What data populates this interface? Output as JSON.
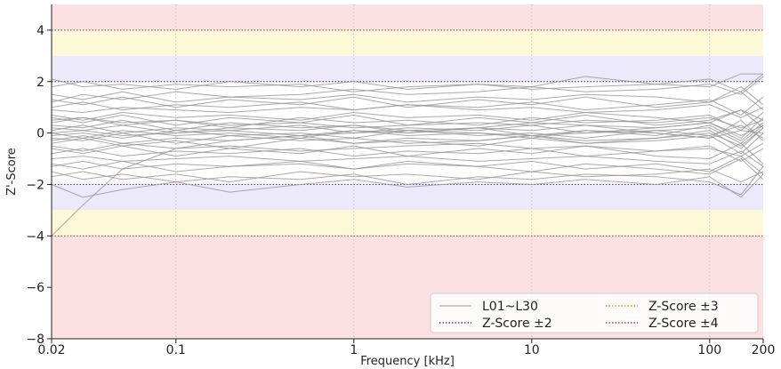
{
  "chart_data": {
    "type": "line",
    "xlabel": "Frequency [kHz]",
    "ylabel": "Z'-Score",
    "xscale": "log",
    "xlim": [
      0.02,
      200
    ],
    "ylim": [
      -8,
      5
    ],
    "x_ticks": [
      0.02,
      0.1,
      1,
      10,
      100,
      200
    ],
    "x_tick_labels": [
      "0.02",
      "0.1",
      "1",
      "10",
      "100",
      "200"
    ],
    "y_ticks": [
      -8,
      -6,
      -4,
      -2,
      0,
      2,
      4
    ],
    "y_tick_labels": [
      "−8",
      "−6",
      "−4",
      "−2",
      "0",
      "2",
      "4"
    ],
    "grid": true,
    "legend_position": "bottom-right",
    "bands": [
      {
        "from": 4,
        "to": 5,
        "color": "#fbe1e1"
      },
      {
        "from": 3,
        "to": 4,
        "color": "#fdf8d8"
      },
      {
        "from": 2,
        "to": 3,
        "color": "#ece9fb"
      },
      {
        "from": -3,
        "to": -2,
        "color": "#ece9fb"
      },
      {
        "from": -4,
        "to": -3,
        "color": "#fdf8d8"
      },
      {
        "from": -8,
        "to": -4,
        "color": "#fbe1e1"
      }
    ],
    "reference_lines": [
      {
        "y": 2,
        "color": "#7a2a8a",
        "style": "dotted"
      },
      {
        "y": -2,
        "color": "#7a2a8a",
        "style": "dotted"
      },
      {
        "y": 4,
        "color": "#b04040",
        "style": "dotted"
      },
      {
        "y": -4,
        "color": "#b04040",
        "style": "dotted"
      }
    ],
    "legend": [
      {
        "label": "L01~L30",
        "style": "solid",
        "color": "#aaaaaa"
      },
      {
        "label": "Z-Score ±3",
        "style": "dotted",
        "color": "#e8a020"
      },
      {
        "label": "Z-Score ±2",
        "style": "dotted",
        "color": "#7a2a8a"
      },
      {
        "label": "Z-Score ±4",
        "style": "dotted",
        "color": "#c04030"
      }
    ],
    "x": [
      0.02,
      0.03,
      0.05,
      0.1,
      0.2,
      0.5,
      1,
      2,
      5,
      10,
      20,
      50,
      100,
      150,
      200
    ],
    "series": [
      {
        "values": [
          -4.0,
          -2.8,
          -1.4,
          -0.6,
          -0.3,
          -0.1,
          0.1,
          0.0,
          0.2,
          -0.1,
          0.1,
          0.0,
          -0.2,
          0.1,
          0.0
        ]
      },
      {
        "values": [
          0.5,
          0.6,
          0.4,
          0.5,
          0.3,
          0.4,
          0.2,
          0.3,
          0.4,
          0.3,
          0.5,
          0.4,
          0.6,
          0.2,
          0.5
        ]
      },
      {
        "values": [
          1.2,
          1.5,
          1.3,
          1.6,
          1.4,
          1.5,
          1.7,
          1.5,
          1.6,
          1.8,
          1.6,
          1.7,
          1.9,
          1.5,
          2.2
        ]
      },
      {
        "values": [
          -0.5,
          -0.7,
          -0.4,
          -0.6,
          -0.5,
          -0.7,
          -0.6,
          -0.5,
          -0.4,
          -0.6,
          -0.5,
          -0.7,
          -0.6,
          -0.9,
          -0.4
        ]
      },
      {
        "values": [
          1.8,
          2.0,
          1.7,
          1.9,
          1.8,
          1.9,
          1.6,
          1.8,
          1.9,
          1.7,
          1.8,
          1.9,
          2.1,
          1.6,
          2.3
        ]
      },
      {
        "values": [
          -1.5,
          -1.8,
          -1.6,
          -1.9,
          -1.7,
          -1.8,
          -1.6,
          -2.0,
          -1.7,
          -1.8,
          -1.6,
          -1.7,
          -1.9,
          -2.4,
          -1.3
        ]
      },
      {
        "values": [
          0.0,
          0.1,
          -0.1,
          0.0,
          0.1,
          -0.1,
          0.0,
          0.1,
          0.0,
          -0.1,
          0.0,
          0.1,
          -0.1,
          0.3,
          -0.2
        ]
      },
      {
        "values": [
          0.9,
          0.8,
          1.0,
          0.9,
          0.8,
          1.0,
          0.9,
          1.1,
          0.9,
          1.0,
          0.8,
          0.9,
          1.1,
          0.6,
          1.0
        ]
      },
      {
        "values": [
          -1.0,
          -0.9,
          -1.1,
          -1.0,
          -0.9,
          -1.1,
          -1.0,
          -0.9,
          -1.1,
          -1.0,
          -0.9,
          -1.1,
          -1.2,
          -0.7,
          -1.3
        ]
      },
      {
        "values": [
          -2.0,
          -2.5,
          -2.2,
          -1.9,
          -2.3,
          -2.0,
          -1.8,
          -2.1,
          -1.9,
          -2.0,
          -1.8,
          -2.0,
          -1.7,
          -2.5,
          -1.6
        ]
      },
      {
        "values": [
          0.3,
          0.2,
          0.5,
          0.1,
          0.4,
          0.2,
          0.3,
          0.1,
          0.2,
          0.4,
          0.3,
          0.2,
          0.4,
          -0.2,
          0.6
        ]
      },
      {
        "values": [
          -0.2,
          -0.3,
          0.0,
          -0.4,
          -0.1,
          -0.3,
          -0.2,
          -0.4,
          -0.3,
          -0.1,
          -0.3,
          -0.2,
          0.0,
          -0.5,
          0.2
        ]
      },
      {
        "values": [
          1.5,
          1.3,
          1.6,
          1.2,
          1.4,
          1.3,
          1.5,
          1.2,
          1.4,
          1.3,
          1.5,
          1.4,
          1.2,
          1.8,
          1.1
        ]
      },
      {
        "values": [
          -1.2,
          -1.4,
          -1.1,
          -1.5,
          -1.3,
          -1.2,
          -1.4,
          -1.1,
          -1.3,
          -1.5,
          -1.2,
          -1.4,
          -1.6,
          -1.0,
          -1.8
        ]
      },
      {
        "values": [
          0.7,
          0.5,
          0.8,
          0.6,
          0.7,
          0.5,
          0.8,
          0.6,
          0.7,
          0.5,
          0.8,
          0.6,
          0.4,
          0.9,
          0.5
        ]
      },
      {
        "values": [
          -0.8,
          -0.6,
          -0.9,
          -0.7,
          -0.8,
          -0.6,
          -0.9,
          -0.7,
          -0.8,
          -0.6,
          -0.9,
          -0.7,
          -0.5,
          -1.1,
          -0.6
        ]
      },
      {
        "values": [
          0.1,
          0.3,
          0.0,
          0.2,
          0.1,
          0.3,
          0.0,
          0.2,
          0.1,
          0.3,
          0.0,
          0.2,
          0.4,
          -0.1,
          0.3
        ]
      },
      {
        "values": [
          2.1,
          1.8,
          1.9,
          1.7,
          2.0,
          1.8,
          2.0,
          1.7,
          1.9,
          1.8,
          2.2,
          1.9,
          1.8,
          2.3,
          2.3
        ]
      },
      {
        "values": [
          -1.7,
          -1.5,
          -1.8,
          -1.6,
          -1.9,
          -1.5,
          -1.7,
          -1.6,
          -1.8,
          -1.5,
          -1.7,
          -1.6,
          -1.4,
          -1.9,
          -1.5
        ]
      },
      {
        "values": [
          0.4,
          0.6,
          0.3,
          0.5,
          0.2,
          0.6,
          0.4,
          0.5,
          0.3,
          0.6,
          0.4,
          0.5,
          0.7,
          0.1,
          0.8
        ]
      },
      {
        "values": [
          -0.4,
          -0.2,
          -0.5,
          -0.3,
          -0.6,
          -0.2,
          -0.4,
          -0.3,
          -0.5,
          -0.2,
          -0.4,
          -0.3,
          -0.1,
          -0.8,
          0.0
        ]
      },
      {
        "values": [
          1.0,
          1.2,
          0.9,
          1.1,
          1.0,
          1.2,
          0.9,
          1.1,
          1.0,
          1.2,
          0.9,
          1.1,
          1.3,
          0.7,
          1.4
        ]
      },
      {
        "values": [
          -0.1,
          0.0,
          -0.2,
          0.1,
          -0.1,
          0.0,
          -0.2,
          0.1,
          -0.1,
          0.0,
          -0.2,
          0.1,
          0.2,
          -0.4,
          0.3
        ]
      },
      {
        "values": [
          0.6,
          0.4,
          0.7,
          0.3,
          0.6,
          0.4,
          0.7,
          0.3,
          0.6,
          0.4,
          0.7,
          0.3,
          0.5,
          0.9,
          0.2
        ]
      },
      {
        "values": [
          -0.6,
          -0.8,
          -0.5,
          -0.9,
          -0.6,
          -0.8,
          -0.5,
          -0.9,
          -0.6,
          -0.8,
          -0.5,
          -0.9,
          -1.0,
          -0.4,
          -1.2
        ]
      },
      {
        "values": [
          0.2,
          0.1,
          0.3,
          0.0,
          0.2,
          0.1,
          0.3,
          0.0,
          0.2,
          0.1,
          0.3,
          0.0,
          -0.2,
          0.5,
          -0.3
        ]
      },
      {
        "values": [
          -0.3,
          -0.1,
          -0.4,
          -0.2,
          -0.3,
          -0.1,
          -0.4,
          -0.2,
          -0.3,
          -0.1,
          -0.4,
          -0.2,
          0.1,
          -0.6,
          0.2
        ]
      },
      {
        "values": [
          1.3,
          1.1,
          1.4,
          1.0,
          1.3,
          1.1,
          1.4,
          1.0,
          1.3,
          1.1,
          1.4,
          1.0,
          1.2,
          1.6,
          0.9
        ]
      },
      {
        "values": [
          -1.3,
          -1.1,
          -1.4,
          -1.2,
          -1.3,
          -1.1,
          -1.4,
          -1.2,
          -1.3,
          -1.1,
          -1.4,
          -1.2,
          -1.5,
          -0.9,
          -1.6
        ]
      },
      {
        "values": [
          0.0,
          -0.2,
          0.1,
          -0.1,
          0.0,
          -0.2,
          0.1,
          -0.1,
          0.0,
          -0.2,
          0.1,
          -0.1,
          0.3,
          -0.3,
          0.4
        ]
      }
    ]
  }
}
